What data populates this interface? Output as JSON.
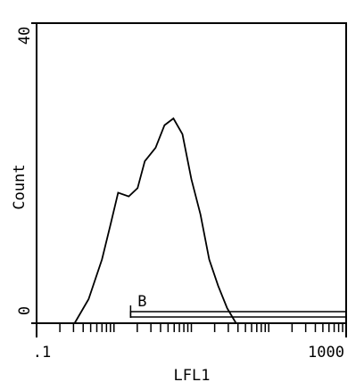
{
  "chart_data": {
    "type": "line",
    "x_label": "LFL1",
    "y_label": "Count",
    "log_x": true,
    "x": [
      0.31,
      0.47,
      0.7,
      0.91,
      1.13,
      1.55,
      2.02,
      2.5,
      3.45,
      4.5,
      5.87,
      7.66,
      10,
      13.1,
      17.0,
      22.2,
      29.0,
      37.8
    ],
    "series": [
      {
        "color": "#000000",
        "values": [
          0,
          3.2,
          8.5,
          13.3,
          17.4,
          16.9,
          18,
          21.6,
          23.4,
          26.4,
          27.3,
          25.2,
          19.2,
          14.5,
          8.5,
          5,
          2,
          0
        ]
      }
    ],
    "xlim": [
      0.1,
      1000
    ],
    "ylim": [
      0,
      40
    ],
    "xticks": [
      {
        "value": 0.1,
        "label": ".1"
      },
      1000
    ],
    "minor_xticks": [
      0.2,
      0.3,
      0.4,
      0.5,
      0.6,
      0.7,
      0.8,
      0.9,
      1,
      2,
      3,
      4,
      5,
      6,
      7,
      8,
      9,
      10,
      20,
      30,
      40,
      50,
      60,
      70,
      80,
      90,
      100,
      200,
      300,
      400,
      500,
      600,
      700,
      800,
      900
    ],
    "yticks": [
      0,
      40
    ],
    "gate": {
      "label": "B",
      "range": [
        1.64,
        1000
      ]
    }
  }
}
